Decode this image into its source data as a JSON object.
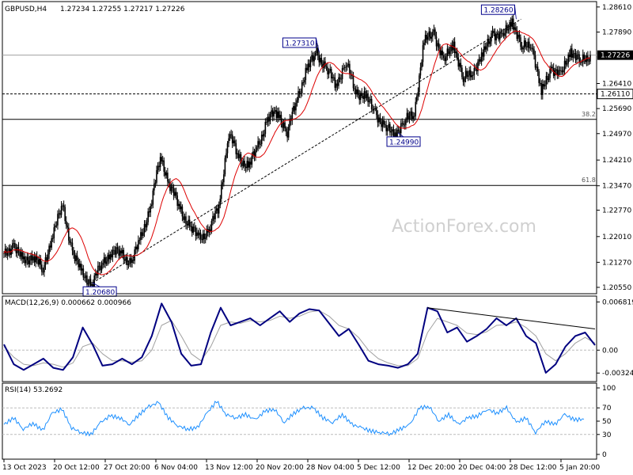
{
  "chart_data": [
    {
      "type": "candlestick",
      "title": "GBPUSD,H4",
      "ohlc_text": "1.27234 1.27255 1.27217 1.27226",
      "y_ticks": [
        "1.28610",
        "1.27890",
        "1.27226",
        "1.26410",
        "1.26110",
        "1.25690",
        "1.24970",
        "1.24210",
        "1.23470",
        "1.22770",
        "1.22010",
        "1.21270",
        "1.20550"
      ],
      "ylim": [
        1.2039,
        1.2872
      ],
      "current_price": 1.27226,
      "x_ticks": [
        "13 Oct 2023",
        "20 Oct 12:00",
        "27 Oct 20:00",
        "6 Nov 04:00",
        "13 Nov 12:00",
        "20 Nov 20:00",
        "28 Nov 04:00",
        "5 Dec 12:00",
        "12 Dec 20:00",
        "20 Dec 04:00",
        "28 Dec 12:00",
        "5 Jan 20:00"
      ],
      "price_path": [
        1.2145,
        1.218,
        1.2125,
        1.215,
        1.21,
        1.2215,
        1.2285,
        1.216,
        1.209,
        1.2068,
        1.212,
        1.216,
        1.215,
        1.2125,
        1.2195,
        1.229,
        1.243,
        1.235,
        1.228,
        1.223,
        1.2195,
        1.222,
        1.229,
        1.25,
        1.243,
        1.24,
        1.246,
        1.254,
        1.256,
        1.25,
        1.26,
        1.268,
        1.2731,
        1.268,
        1.264,
        1.27,
        1.262,
        1.26,
        1.256,
        1.251,
        1.2499,
        1.253,
        1.256,
        1.276,
        1.279,
        1.27,
        1.276,
        1.265,
        1.268,
        1.272,
        1.279,
        1.277,
        1.2826,
        1.274,
        1.276,
        1.261,
        1.269,
        1.266,
        1.274,
        1.27,
        1.2723
      ],
      "labels": [
        {
          "text": "1.28260",
          "price": 1.2826,
          "slot": 52,
          "dx": -44,
          "dy": -6
        },
        {
          "text": "1.27310",
          "price": 1.2731,
          "slot": 32,
          "dx": -46,
          "dy": -6
        },
        {
          "text": "1.24990",
          "price": 1.2499,
          "slot": 40,
          "dx": -14,
          "dy": 5
        },
        {
          "text": "1.20680",
          "price": 1.2068,
          "slot": 9,
          "dx": -12,
          "dy": 5
        },
        {
          "text": "1.26110",
          "price": 1.2611,
          "slot": 60,
          "dx": 40,
          "dy": -5
        }
      ],
      "horizontal_lines": [
        {
          "price": 1.27226,
          "style": "solid",
          "color": "#a0a0a0"
        },
        {
          "price": 1.2611,
          "style": "dashed",
          "color": "#000000"
        },
        {
          "price": 1.2538,
          "style": "solid",
          "color": "#000000",
          "label": "38.2"
        },
        {
          "price": 1.2348,
          "style": "solid",
          "color": "#000000",
          "label": "61.8"
        }
      ],
      "trendline": {
        "from": {
          "slot": 9,
          "price": 1.2068
        },
        "to": {
          "slot": 52,
          "price": 1.2826
        },
        "style": "dashed"
      },
      "watermark": "ActionForex.com"
    },
    {
      "type": "line",
      "title": "MACD(12,26,9) 0.000662 0.000966",
      "y_ticks": [
        "0.006819",
        "0.00",
        "-0.003241"
      ],
      "ylim": [
        -0.004,
        0.0072
      ],
      "series": [
        {
          "name": "macd",
          "color": "#000080",
          "values": [
            0.0008,
            -0.002,
            -0.0028,
            -0.002,
            -0.0012,
            -0.0025,
            -0.0028,
            -0.001,
            0.0032,
            0.0008,
            -0.0022,
            -0.002,
            -0.0012,
            -0.002,
            -0.001,
            0.002,
            0.0066,
            0.004,
            -0.0005,
            -0.0022,
            -0.002,
            0.0025,
            0.006,
            0.0035,
            0.004,
            0.0045,
            0.0035,
            0.0045,
            0.0055,
            0.004,
            0.0052,
            0.0058,
            0.0056,
            0.0038,
            0.002,
            0.003,
            0.0008,
            -0.0015,
            -0.002,
            -0.0022,
            -0.0025,
            -0.002,
            -0.0005,
            0.006,
            0.0055,
            0.0025,
            0.0032,
            0.0012,
            0.002,
            0.003,
            0.0045,
            0.0035,
            0.0045,
            0.002,
            0.001,
            -0.0032,
            -0.002,
            0.0005,
            0.002,
            0.0025,
            0.0007
          ]
        },
        {
          "name": "signal",
          "color": "#a0a0a0",
          "values": [
            0.0005,
            -0.001,
            -0.002,
            -0.0022,
            -0.0018,
            -0.002,
            -0.0024,
            -0.0018,
            0.0005,
            0.001,
            -0.0005,
            -0.0015,
            -0.0015,
            -0.0017,
            -0.0015,
            0.0,
            0.0035,
            0.0042,
            0.002,
            -0.0005,
            -0.0015,
            0.0005,
            0.0035,
            0.004,
            0.0038,
            0.0042,
            0.004,
            0.0042,
            0.0048,
            0.0045,
            0.0048,
            0.0054,
            0.0056,
            0.0048,
            0.0035,
            0.003,
            0.0018,
            0.0,
            -0.0012,
            -0.0018,
            -0.0022,
            -0.0022,
            -0.0012,
            0.0025,
            0.0045,
            0.004,
            0.0035,
            0.0024,
            0.0022,
            0.0026,
            0.0035,
            0.0036,
            0.004,
            0.0032,
            0.002,
            -0.0005,
            -0.0015,
            -0.0005,
            0.001,
            0.0018,
            0.001
          ]
        }
      ],
      "trendline": {
        "from": {
          "slot": 43,
          "value": 0.006
        },
        "to": {
          "slot": 60,
          "value": 0.003
        }
      }
    },
    {
      "type": "line",
      "title": "RSI(14) 53.2692",
      "y_ticks": [
        "100",
        "70",
        "50",
        "30",
        "0"
      ],
      "ylim": [
        0,
        100
      ],
      "levels": [
        70,
        30
      ],
      "series": [
        {
          "name": "rsi",
          "color": "#1e90ff",
          "values": [
            45,
            55,
            38,
            47,
            36,
            62,
            68,
            40,
            33,
            30,
            48,
            58,
            55,
            45,
            60,
            72,
            78,
            55,
            43,
            38,
            40,
            62,
            80,
            60,
            55,
            60,
            52,
            65,
            68,
            48,
            62,
            70,
            70,
            55,
            48,
            60,
            45,
            40,
            35,
            33,
            31,
            38,
            45,
            70,
            72,
            50,
            60,
            45,
            55,
            58,
            68,
            62,
            70,
            48,
            55,
            33,
            50,
            45,
            60,
            52,
            53
          ]
        }
      ]
    }
  ]
}
